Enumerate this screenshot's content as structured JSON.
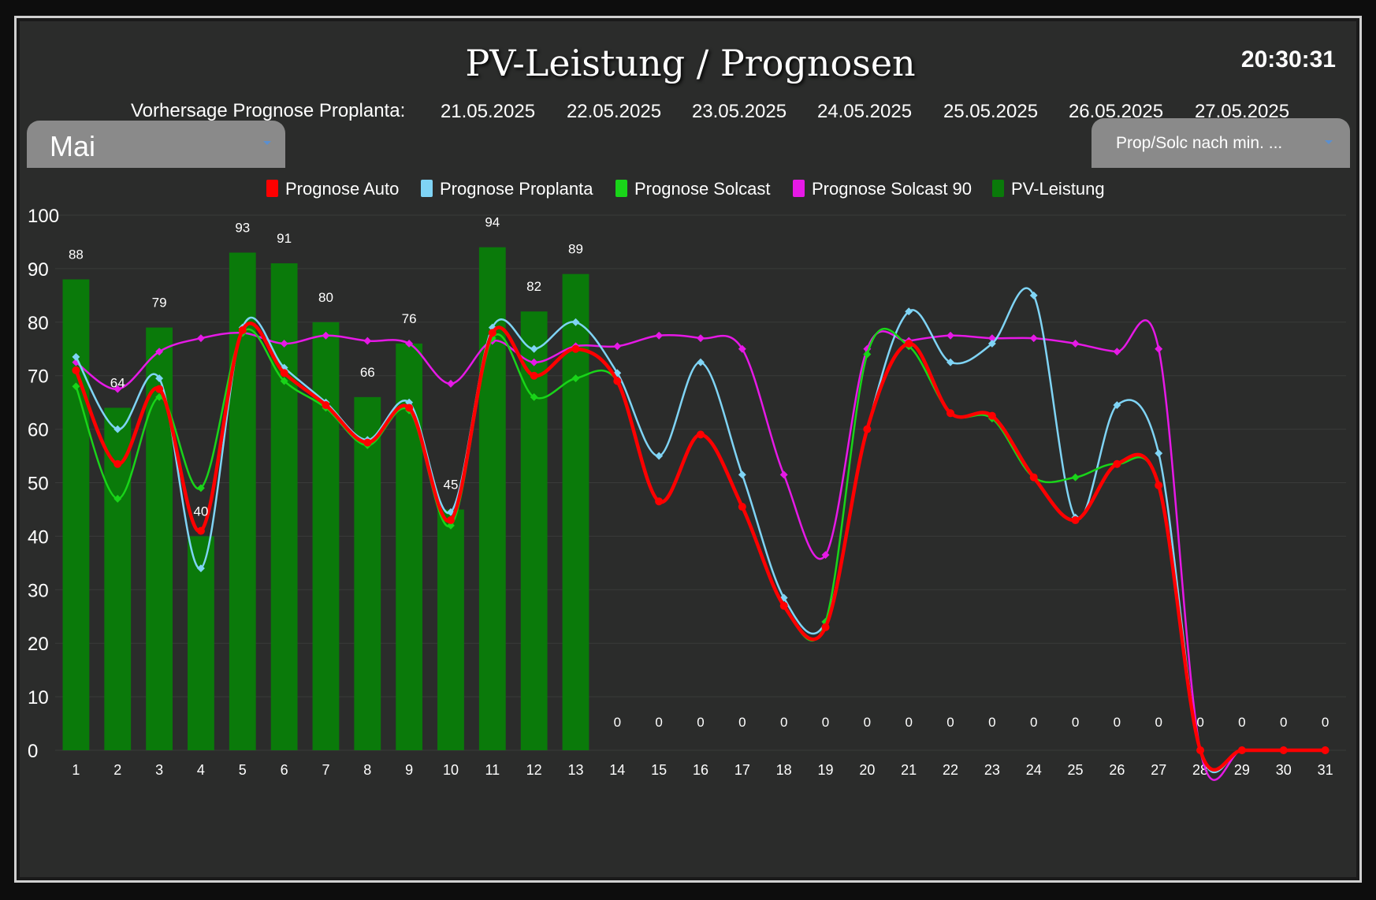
{
  "header": {
    "title": "PV-Leistung / Prognosen",
    "clock": "20:30:31",
    "forecast_label": "Vorhersage Prognose Proplanta:",
    "dates": [
      "21.05.2025",
      "22.05.2025",
      "23.05.2025",
      "24.05.2025",
      "25.05.2025",
      "26.05.2025",
      "27.05.2025"
    ]
  },
  "controls": {
    "month_select": "Mai",
    "mode_select": "Prop/Solc nach min. ..."
  },
  "colors": {
    "background": "#2b2c2b",
    "auto": "#ff0000",
    "proplanta": "#7fd4f5",
    "solcast": "#19d419",
    "solcast90": "#e619e6",
    "pv": "#0a7a0a"
  },
  "chart_data": {
    "type": "bar",
    "categories": [
      1,
      2,
      3,
      4,
      5,
      6,
      7,
      8,
      9,
      10,
      11,
      12,
      13,
      14,
      15,
      16,
      17,
      18,
      19,
      20,
      21,
      22,
      23,
      24,
      25,
      26,
      27,
      28,
      29,
      30,
      31
    ],
    "ylim": [
      0,
      100
    ],
    "yticks": [
      0,
      10,
      20,
      30,
      40,
      50,
      60,
      70,
      80,
      90,
      100
    ],
    "legend_position": "top-center",
    "grid": true,
    "series": [
      {
        "name": "Prognose Auto",
        "type": "line",
        "color": "#ff0000",
        "values": [
          71,
          53.5,
          67.5,
          41,
          78.5,
          70.5,
          64.5,
          57.5,
          64,
          43,
          78,
          70,
          75,
          69,
          46.5,
          59,
          45.5,
          27,
          23,
          60,
          76,
          63,
          62.5,
          51,
          43,
          53.5,
          49.5,
          0,
          0,
          0,
          0
        ]
      },
      {
        "name": "Prognose Proplanta",
        "type": "line",
        "color": "#7fd4f5",
        "values": [
          73.5,
          60,
          69.5,
          34,
          79,
          71.5,
          65,
          58,
          65,
          44.5,
          79,
          75,
          80,
          70.5,
          55,
          72.5,
          51.5,
          28.5,
          24,
          60,
          82,
          72.5,
          76,
          85,
          43.5,
          64.5,
          55.5,
          0,
          0,
          0,
          0
        ]
      },
      {
        "name": "Prognose Solcast",
        "type": "line",
        "color": "#19d419",
        "values": [
          68,
          47,
          66,
          49,
          78,
          69,
          64,
          57,
          63.5,
          42,
          77,
          66,
          69.5,
          69,
          46.5,
          59,
          45.5,
          27,
          24,
          74,
          75.5,
          63,
          62,
          51,
          51,
          53.5,
          49.5,
          0,
          0,
          0,
          0
        ]
      },
      {
        "name": "Prognose Solcast 90",
        "type": "line",
        "color": "#e619e6",
        "values": [
          72.5,
          67.5,
          74.5,
          77,
          78,
          76,
          77.5,
          76.5,
          76,
          68.5,
          76.5,
          72.5,
          75.5,
          75.5,
          77.5,
          77,
          75,
          51.5,
          36.5,
          75,
          76.5,
          77.5,
          77,
          77,
          76,
          74.5,
          75,
          0,
          0,
          0,
          0
        ]
      },
      {
        "name": "PV-Leistung",
        "type": "bar",
        "color": "#0a7a0a",
        "values": [
          88,
          64,
          79,
          40,
          93,
          91,
          80,
          66,
          76,
          45,
          94,
          82,
          89,
          0,
          0,
          0,
          0,
          0,
          0,
          0,
          0,
          0,
          0,
          0,
          0,
          0,
          0,
          0,
          0,
          0,
          0
        ]
      }
    ]
  }
}
